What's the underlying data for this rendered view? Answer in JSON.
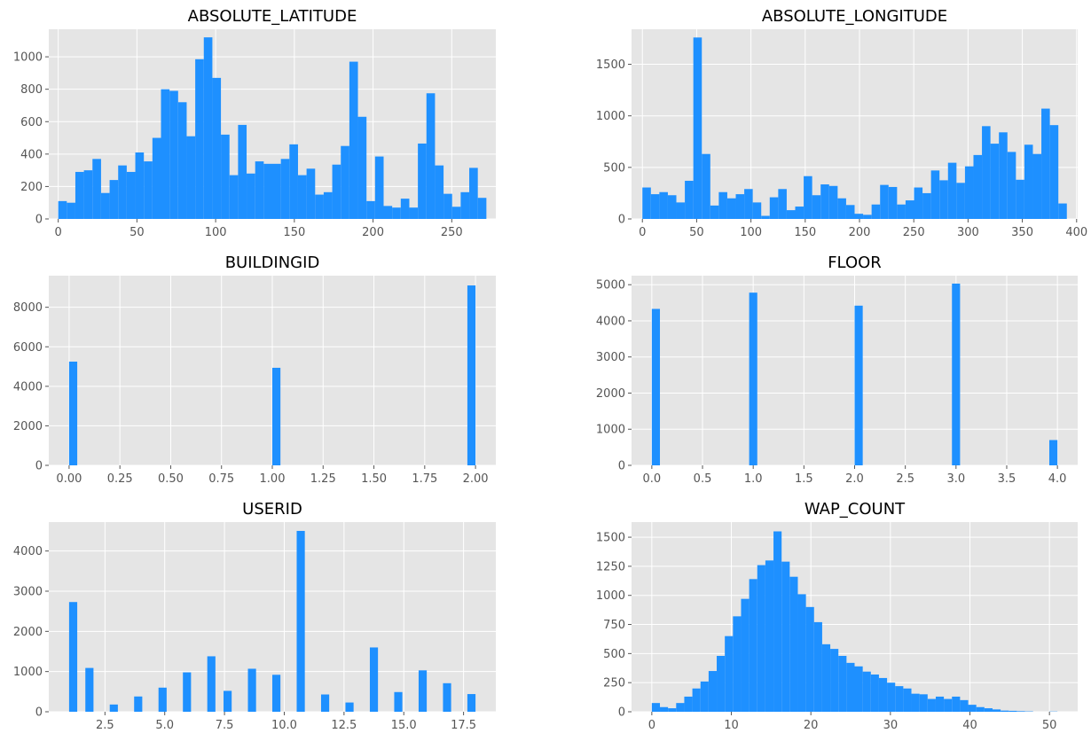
{
  "chart_data": [
    {
      "type": "bar",
      "title": "ABSOLUTE_LATITUDE",
      "bin_edges_range": [
        0,
        272
      ],
      "xlim": [
        -6,
        278
      ],
      "ylim": [
        0,
        1170
      ],
      "xticks": [
        0,
        50,
        100,
        150,
        200,
        250
      ],
      "yticks": [
        0,
        200,
        400,
        600,
        800,
        1000
      ],
      "grid": true,
      "values": [
        110,
        100,
        290,
        300,
        370,
        160,
        240,
        330,
        290,
        410,
        355,
        500,
        800,
        790,
        720,
        510,
        985,
        1120,
        870,
        520,
        270,
        580,
        280,
        355,
        340,
        340,
        370,
        460,
        270,
        310,
        150,
        165,
        335,
        450,
        970,
        630,
        110,
        385,
        80,
        70,
        125,
        70,
        465,
        775,
        330,
        155,
        75,
        165,
        315,
        130
      ]
    },
    {
      "type": "bar",
      "title": "ABSOLUTE_LONGITUDE",
      "bin_edges_range": [
        0,
        391
      ],
      "xlim": [
        -10,
        401
      ],
      "ylim": [
        0,
        1840
      ],
      "xticks": [
        0,
        50,
        100,
        150,
        200,
        250,
        300,
        350,
        400
      ],
      "yticks": [
        0,
        500,
        1000,
        1500
      ],
      "grid": true,
      "values": [
        305,
        240,
        260,
        230,
        160,
        370,
        1760,
        630,
        130,
        260,
        200,
        240,
        290,
        160,
        30,
        210,
        290,
        85,
        120,
        415,
        230,
        335,
        320,
        200,
        135,
        50,
        40,
        140,
        330,
        310,
        140,
        180,
        305,
        250,
        470,
        375,
        545,
        350,
        510,
        620,
        900,
        730,
        840,
        650,
        380,
        720,
        630,
        1070,
        910,
        150
      ]
    },
    {
      "type": "bar",
      "title": "BUILDINGID",
      "bin_edges_range": [
        0,
        2
      ],
      "xlim": [
        -0.1,
        2.1
      ],
      "ylim": [
        0,
        9600
      ],
      "xticks": [
        0.0,
        0.25,
        0.5,
        0.75,
        1.0,
        1.25,
        1.5,
        1.75,
        2.0
      ],
      "xticklabels": [
        "0.00",
        "0.25",
        "0.50",
        "0.75",
        "1.00",
        "1.25",
        "1.50",
        "1.75",
        "2.00"
      ],
      "yticks": [
        0,
        2000,
        4000,
        6000,
        8000
      ],
      "grid": true,
      "values": [
        5249,
        0,
        0,
        0,
        0,
        0,
        0,
        0,
        0,
        0,
        0,
        0,
        0,
        0,
        0,
        0,
        0,
        0,
        0,
        0,
        0,
        0,
        0,
        0,
        0,
        4937,
        0,
        0,
        0,
        0,
        0,
        0,
        0,
        0,
        0,
        0,
        0,
        0,
        0,
        0,
        0,
        0,
        0,
        0,
        0,
        0,
        0,
        0,
        0,
        9105
      ]
    },
    {
      "type": "bar",
      "title": "FLOOR",
      "bin_edges_range": [
        0,
        4
      ],
      "xlim": [
        -0.2,
        4.2
      ],
      "ylim": [
        0,
        5250
      ],
      "xticks": [
        0.0,
        0.5,
        1.0,
        1.5,
        2.0,
        2.5,
        3.0,
        3.5,
        4.0
      ],
      "xticklabels": [
        "0.0",
        "0.5",
        "1.0",
        "1.5",
        "2.0",
        "2.5",
        "3.0",
        "3.5",
        "4.0"
      ],
      "yticks": [
        0,
        1000,
        2000,
        3000,
        4000,
        5000
      ],
      "grid": true,
      "values": [
        4330,
        0,
        0,
        0,
        0,
        0,
        0,
        0,
        0,
        0,
        0,
        0,
        4780,
        0,
        0,
        0,
        0,
        0,
        0,
        0,
        0,
        0,
        0,
        0,
        0,
        4420,
        0,
        0,
        0,
        0,
        0,
        0,
        0,
        0,
        0,
        0,
        0,
        5030,
        0,
        0,
        0,
        0,
        0,
        0,
        0,
        0,
        0,
        0,
        0,
        700
      ]
    },
    {
      "type": "bar",
      "title": "USERID",
      "bin_edges_range": [
        1,
        18
      ],
      "xlim": [
        0.15,
        18.85
      ],
      "ylim": [
        0,
        4720
      ],
      "xticks": [
        2.5,
        5.0,
        7.5,
        10.0,
        12.5,
        15.0,
        17.5
      ],
      "xticklabels": [
        "2.5",
        "5.0",
        "7.5",
        "10.0",
        "12.5",
        "15.0",
        "17.5"
      ],
      "yticks": [
        0,
        1000,
        2000,
        3000,
        4000
      ],
      "grid": true,
      "values": [
        2730,
        0,
        1090,
        0,
        0,
        180,
        0,
        0,
        380,
        0,
        0,
        600,
        0,
        0,
        980,
        0,
        0,
        1380,
        0,
        520,
        0,
        0,
        1070,
        0,
        0,
        920,
        0,
        0,
        4500,
        0,
        0,
        430,
        0,
        0,
        230,
        0,
        0,
        1600,
        0,
        0,
        490,
        0,
        0,
        1030,
        0,
        0,
        710,
        0,
        0,
        440
      ]
    },
    {
      "type": "bar",
      "title": "WAP_COUNT",
      "bin_edges_range": [
        0,
        51
      ],
      "xlim": [
        -2.55,
        53.55
      ],
      "ylim": [
        0,
        1630
      ],
      "xticks": [
        0,
        10,
        20,
        30,
        40,
        50
      ],
      "yticks": [
        0,
        250,
        500,
        750,
        1000,
        1250,
        1500
      ],
      "grid": true,
      "values": [
        75,
        40,
        30,
        75,
        130,
        200,
        260,
        350,
        480,
        650,
        820,
        970,
        1140,
        1260,
        1300,
        1550,
        1290,
        1160,
        1010,
        900,
        770,
        580,
        540,
        480,
        420,
        390,
        345,
        320,
        290,
        250,
        220,
        200,
        155,
        150,
        110,
        130,
        110,
        130,
        100,
        60,
        40,
        30,
        20,
        10,
        8,
        5,
        3,
        0,
        0,
        2
      ]
    }
  ]
}
